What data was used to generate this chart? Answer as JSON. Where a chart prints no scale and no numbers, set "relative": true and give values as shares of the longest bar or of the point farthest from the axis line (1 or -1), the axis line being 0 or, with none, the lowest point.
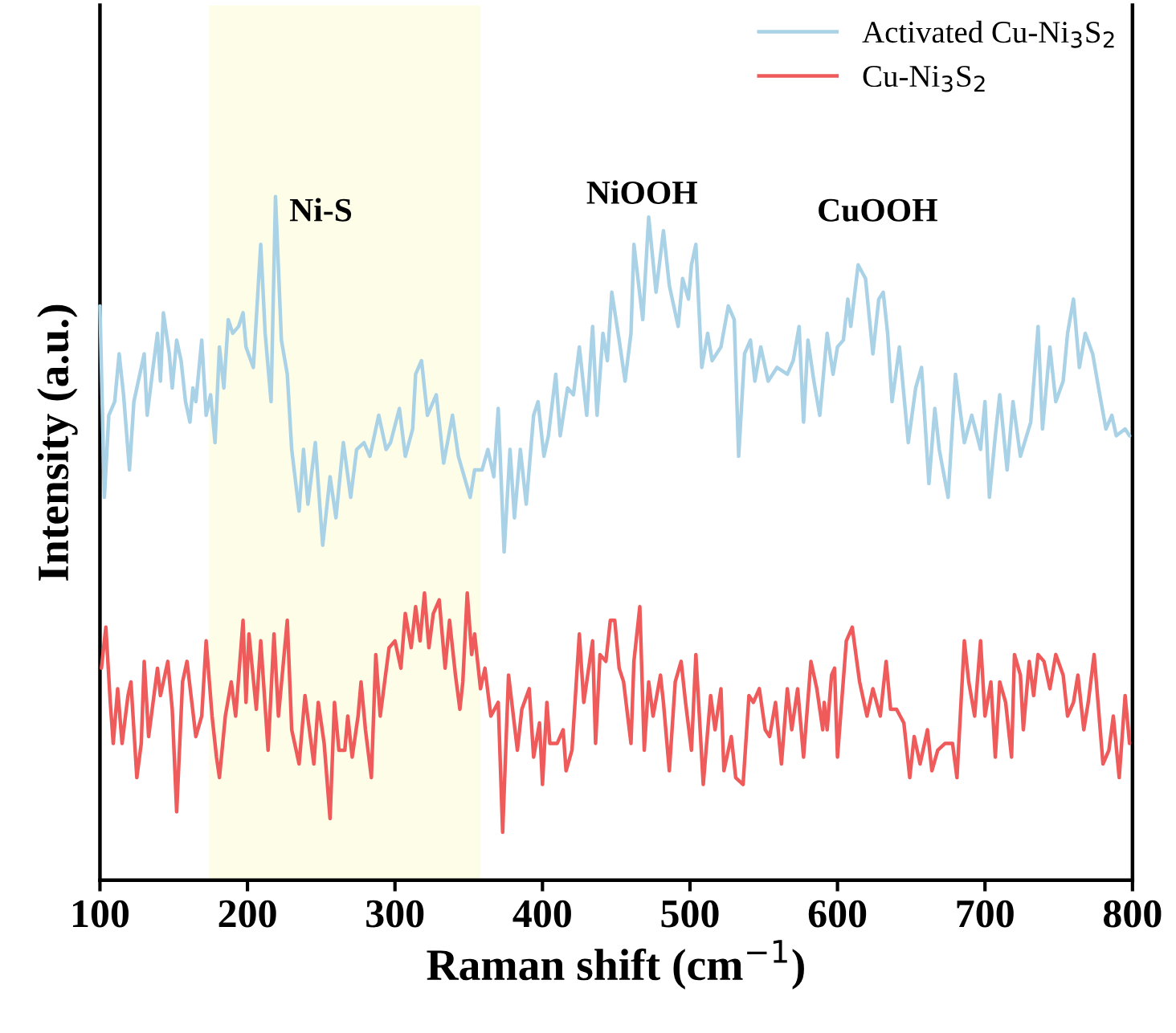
{
  "chart_data": {
    "type": "line",
    "relative": true,
    "xlabel": "Raman shift (cm$^{−1}$)",
    "ylabel": "Intensity (a.u.)",
    "xlim": [
      100,
      800
    ],
    "xticks": [
      100,
      200,
      300,
      400,
      500,
      600,
      700,
      800
    ],
    "tick_labels": "x",
    "grid": false,
    "legend": "top right",
    "marker": "none",
    "line_style": "solid",
    "bands": [
      {
        "axis": "x",
        "from": 174,
        "to": 358,
        "label": null,
        "color": "#fefde8"
      }
    ],
    "annotations": [
      "Ni-S",
      "NiOOH",
      "CuOOH"
    ],
    "series": [
      {
        "name": "Activated Cu-Ni$_{3}$S$_{2}$",
        "color": "#a9d2e7",
        "x": [
          100,
          103,
          106,
          110,
          113,
          116,
          120,
          123,
          127,
          130,
          132,
          136,
          139,
          141,
          143,
          147,
          149,
          152,
          155,
          158,
          161,
          163,
          165,
          169,
          172,
          175,
          178,
          181,
          184,
          187,
          190,
          194,
          197,
          199,
          204,
          209,
          212,
          216,
          219,
          223,
          227,
          230,
          235,
          238,
          241,
          246,
          251,
          256,
          260,
          265,
          270,
          274,
          279,
          283,
          289,
          294,
          297,
          303,
          307,
          312,
          314,
          318,
          322,
          328,
          333,
          339,
          343,
          351,
          354,
          359,
          363,
          367,
          370,
          374,
          378,
          381,
          385,
          389,
          394,
          397,
          401,
          404,
          409,
          412,
          417,
          421,
          425,
          430,
          434,
          437,
          441,
          444,
          447,
          452,
          456,
          460,
          462,
          468,
          472,
          477,
          482,
          486,
          492,
          495,
          499,
          501,
          504,
          508,
          512,
          515,
          521,
          526,
          530,
          533,
          537,
          541,
          544,
          548,
          553,
          559,
          566,
          570,
          574,
          577,
          580,
          584,
          588,
          593,
          597,
          600,
          604,
          607,
          609,
          614,
          619,
          624,
          628,
          631,
          634,
          637,
          642,
          648,
          653,
          657,
          662,
          666,
          669,
          675,
          680,
          686,
          691,
          697,
          700,
          703,
          707,
          710,
          715,
          719,
          724,
          731,
          736,
          739,
          744,
          748,
          753,
          756,
          760,
          764,
          768,
          773,
          777,
          782,
          786,
          789,
          795,
          798
        ],
        "values": [
          0.84,
          0.56,
          0.68,
          0.7,
          0.77,
          0.71,
          0.6,
          0.7,
          0.74,
          0.77,
          0.68,
          0.75,
          0.8,
          0.73,
          0.83,
          0.77,
          0.72,
          0.79,
          0.76,
          0.7,
          0.67,
          0.72,
          0.7,
          0.79,
          0.68,
          0.71,
          0.64,
          0.78,
          0.72,
          0.82,
          0.8,
          0.81,
          0.83,
          0.78,
          0.75,
          0.93,
          0.8,
          0.7,
          1.0,
          0.79,
          0.74,
          0.63,
          0.54,
          0.63,
          0.55,
          0.64,
          0.49,
          0.59,
          0.53,
          0.64,
          0.56,
          0.63,
          0.64,
          0.62,
          0.68,
          0.63,
          0.64,
          0.69,
          0.62,
          0.66,
          0.74,
          0.76,
          0.68,
          0.71,
          0.61,
          0.68,
          0.62,
          0.56,
          0.6,
          0.6,
          0.63,
          0.59,
          0.69,
          0.48,
          0.63,
          0.53,
          0.63,
          0.55,
          0.68,
          0.7,
          0.62,
          0.65,
          0.74,
          0.65,
          0.72,
          0.71,
          0.78,
          0.68,
          0.81,
          0.68,
          0.8,
          0.76,
          0.86,
          0.79,
          0.73,
          0.8,
          0.93,
          0.82,
          0.97,
          0.86,
          0.95,
          0.87,
          0.81,
          0.88,
          0.85,
          0.9,
          0.93,
          0.75,
          0.8,
          0.76,
          0.78,
          0.84,
          0.82,
          0.62,
          0.77,
          0.79,
          0.73,
          0.78,
          0.73,
          0.75,
          0.74,
          0.76,
          0.81,
          0.67,
          0.79,
          0.73,
          0.68,
          0.8,
          0.74,
          0.78,
          0.79,
          0.85,
          0.81,
          0.9,
          0.88,
          0.77,
          0.85,
          0.86,
          0.8,
          0.7,
          0.78,
          0.64,
          0.72,
          0.75,
          0.58,
          0.69,
          0.63,
          0.56,
          0.74,
          0.64,
          0.68,
          0.63,
          0.7,
          0.56,
          0.65,
          0.71,
          0.6,
          0.7,
          0.62,
          0.67,
          0.81,
          0.66,
          0.78,
          0.7,
          0.73,
          0.8,
          0.85,
          0.75,
          0.8,
          0.77,
          0.72,
          0.66,
          0.68,
          0.65,
          0.66,
          0.65
        ]
      },
      {
        "name": "Cu-Ni$_{3}$S$_{2}$",
        "color": "#ef5b5b",
        "x": [
          101,
          104,
          107,
          109,
          112,
          115,
          119,
          121,
          125,
          128,
          130,
          133,
          136,
          139,
          141,
          146,
          149,
          152,
          156,
          159,
          165,
          169,
          172,
          176,
          179,
          181,
          185,
          189,
          192,
          197,
          199,
          201,
          206,
          209,
          214,
          218,
          221,
          224,
          227,
          230,
          235,
          239,
          242,
          245,
          248,
          252,
          256,
          259,
          262,
          266,
          268,
          271,
          275,
          277,
          280,
          284,
          287,
          290,
          296,
          300,
          304,
          307,
          311,
          314,
          317,
          320,
          323,
          326,
          330,
          334,
          337,
          341,
          344,
          346,
          349,
          352,
          354,
          358,
          361,
          365,
          370,
          373,
          377,
          383,
          386,
          391,
          394,
          398,
          400,
          403,
          405,
          410,
          414,
          416,
          420,
          425,
          428,
          434,
          436,
          439,
          443,
          446,
          449,
          452,
          455,
          460,
          462,
          466,
          469,
          472,
          475,
          480,
          482,
          486,
          490,
          494,
          497,
          501,
          504,
          509,
          514,
          517,
          521,
          523,
          528,
          531,
          536,
          540,
          543,
          547,
          551,
          554,
          558,
          562,
          566,
          569,
          573,
          577,
          582,
          586,
          590,
          591,
          593,
          596,
          598,
          600,
          606,
          610,
          615,
          620,
          624,
          629,
          633,
          636,
          640,
          645,
          649,
          652,
          656,
          661,
          664,
          668,
          673,
          678,
          681,
          686,
          689,
          693,
          697,
          700,
          704,
          707,
          710,
          714,
          718,
          720,
          724,
          726,
          730,
          733,
          736,
          740,
          744,
          748,
          753,
          756,
          760,
          763,
          767,
          770,
          774,
          780,
          784,
          787,
          791,
          795,
          798
        ],
        "values": [
          0.31,
          0.37,
          0.26,
          0.2,
          0.28,
          0.2,
          0.27,
          0.29,
          0.15,
          0.2,
          0.32,
          0.21,
          0.26,
          0.31,
          0.27,
          0.32,
          0.25,
          0.1,
          0.29,
          0.32,
          0.21,
          0.24,
          0.35,
          0.24,
          0.18,
          0.15,
          0.24,
          0.29,
          0.24,
          0.38,
          0.26,
          0.36,
          0.25,
          0.35,
          0.19,
          0.36,
          0.24,
          0.31,
          0.38,
          0.22,
          0.17,
          0.27,
          0.22,
          0.17,
          0.26,
          0.2,
          0.09,
          0.26,
          0.19,
          0.19,
          0.24,
          0.18,
          0.24,
          0.29,
          0.22,
          0.15,
          0.33,
          0.24,
          0.34,
          0.35,
          0.31,
          0.39,
          0.34,
          0.4,
          0.35,
          0.42,
          0.34,
          0.39,
          0.41,
          0.31,
          0.38,
          0.3,
          0.25,
          0.29,
          0.42,
          0.33,
          0.36,
          0.28,
          0.31,
          0.24,
          0.26,
          0.07,
          0.3,
          0.19,
          0.25,
          0.28,
          0.18,
          0.23,
          0.14,
          0.26,
          0.2,
          0.2,
          0.22,
          0.16,
          0.19,
          0.36,
          0.26,
          0.35,
          0.2,
          0.33,
          0.32,
          0.38,
          0.38,
          0.31,
          0.29,
          0.2,
          0.32,
          0.4,
          0.19,
          0.29,
          0.24,
          0.3,
          0.26,
          0.16,
          0.29,
          0.32,
          0.26,
          0.19,
          0.33,
          0.14,
          0.27,
          0.22,
          0.28,
          0.16,
          0.21,
          0.15,
          0.14,
          0.27,
          0.26,
          0.28,
          0.22,
          0.21,
          0.26,
          0.17,
          0.28,
          0.22,
          0.28,
          0.18,
          0.32,
          0.28,
          0.22,
          0.26,
          0.22,
          0.3,
          0.31,
          0.18,
          0.35,
          0.37,
          0.29,
          0.24,
          0.28,
          0.24,
          0.32,
          0.25,
          0.25,
          0.23,
          0.15,
          0.21,
          0.17,
          0.22,
          0.16,
          0.19,
          0.2,
          0.2,
          0.15,
          0.35,
          0.29,
          0.24,
          0.35,
          0.24,
          0.29,
          0.18,
          0.29,
          0.26,
          0.18,
          0.33,
          0.3,
          0.22,
          0.32,
          0.27,
          0.33,
          0.32,
          0.28,
          0.33,
          0.3,
          0.24,
          0.26,
          0.3,
          0.22,
          0.26,
          0.33,
          0.17,
          0.19,
          0.24,
          0.15,
          0.27,
          0.2
        ]
      }
    ]
  }
}
